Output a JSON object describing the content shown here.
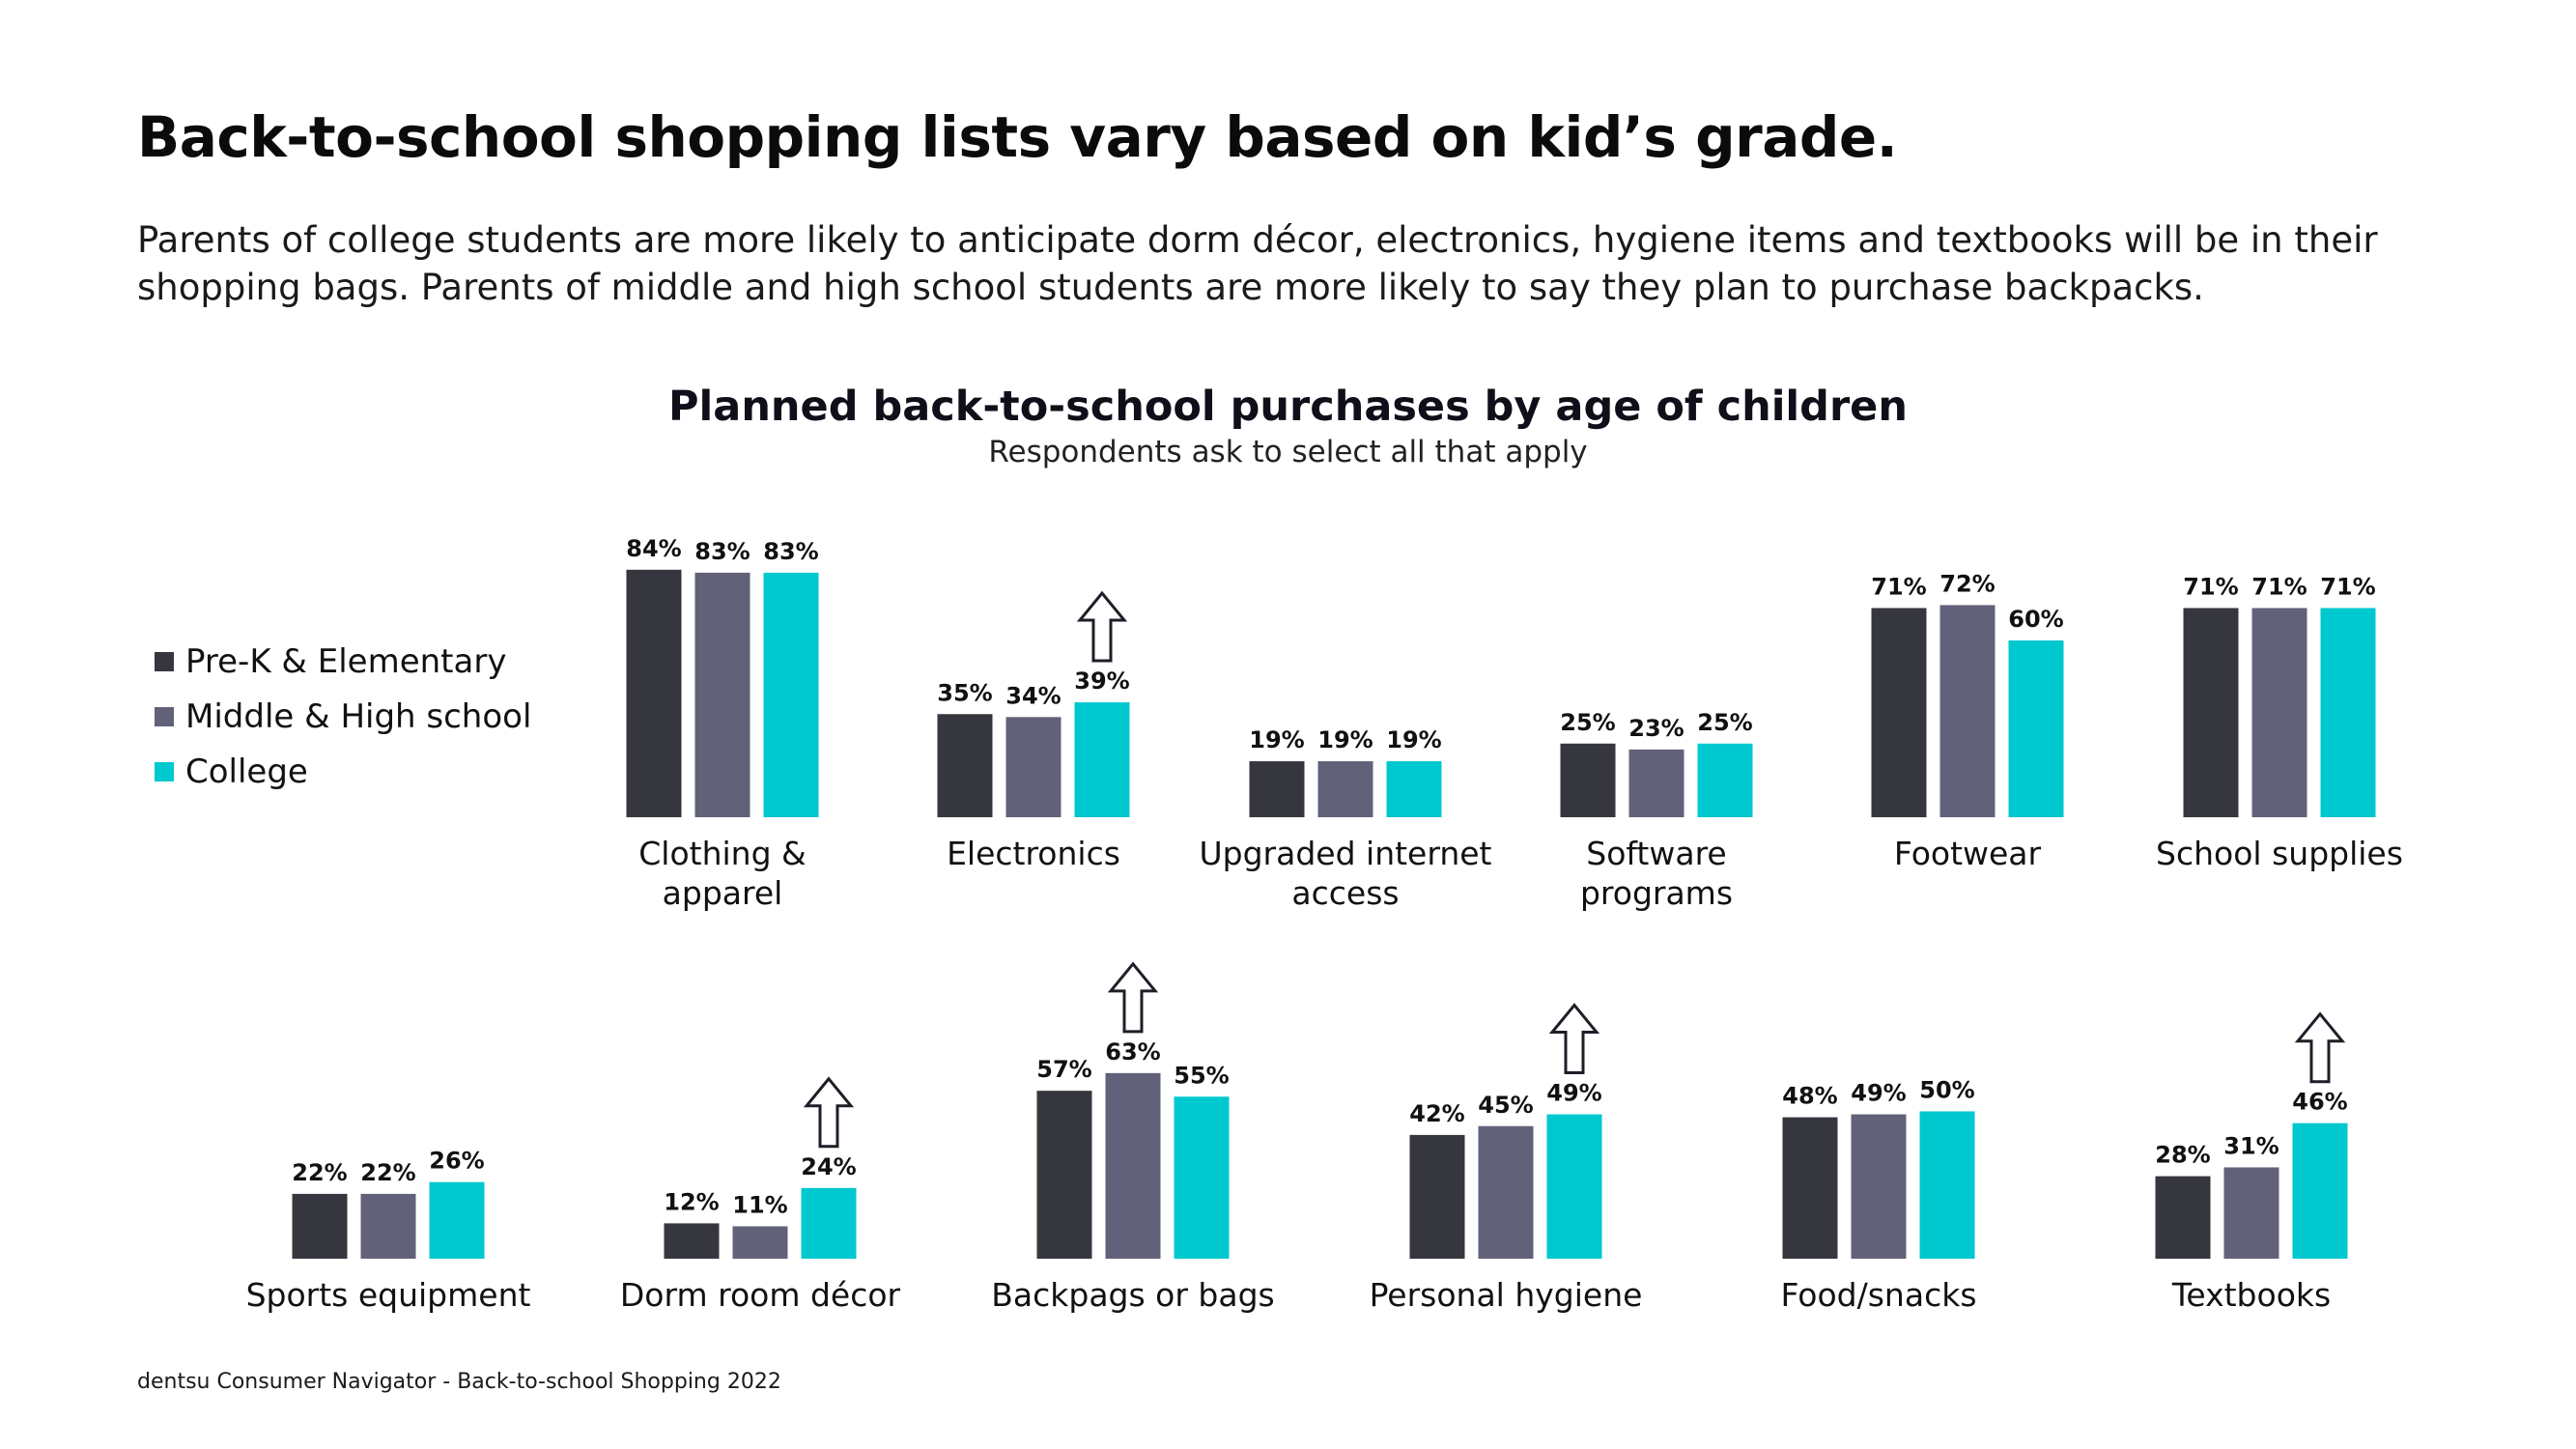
{
  "title": "Back-to-school shopping lists vary based on kid’s grade.",
  "subtitle": "Parents of college students are more likely to anticipate dorm décor, electronics, hygiene items and textbooks will be in their shopping bags. Parents of middle and high school students are more likely to say they plan to purchase backpacks.",
  "footer": "dentsu Consumer Navigator - Back-to-school Shopping 2022",
  "colors": {
    "prek": "#36363e",
    "middle": "#62617a",
    "college": "#00c8cf",
    "arrow": "#1e1e28"
  },
  "icons": {
    "highlight": "up-arrow-icon"
  },
  "chart_data": {
    "type": "bar",
    "title": "Planned back-to-school purchases by age of children",
    "subtitle": "Respondents ask to select all that apply",
    "unit": "%",
    "series_names": [
      "Pre-K & Elementary",
      "Middle & High school",
      "College"
    ],
    "categories": [
      {
        "label": [
          "Clothing &",
          "apparel"
        ],
        "values": [
          84,
          83,
          83
        ],
        "highlight": null
      },
      {
        "label": [
          "Electronics"
        ],
        "values": [
          35,
          34,
          39
        ],
        "highlight": 2
      },
      {
        "label": [
          "Upgraded internet",
          "access"
        ],
        "values": [
          19,
          19,
          19
        ],
        "highlight": null
      },
      {
        "label": [
          "Software",
          "programs"
        ],
        "values": [
          25,
          23,
          25
        ],
        "highlight": null
      },
      {
        "label": [
          "Footwear"
        ],
        "values": [
          71,
          72,
          60
        ],
        "highlight": null
      },
      {
        "label": [
          "School supplies"
        ],
        "values": [
          71,
          71,
          71
        ],
        "highlight": null
      },
      {
        "label": [
          "Sports equipment"
        ],
        "values": [
          22,
          22,
          26
        ],
        "highlight": null
      },
      {
        "label": [
          "Dorm room décor"
        ],
        "values": [
          12,
          11,
          24
        ],
        "highlight": 2
      },
      {
        "label": [
          "Backpags or bags"
        ],
        "values": [
          57,
          63,
          55
        ],
        "highlight": 1
      },
      {
        "label": [
          "Personal hygiene"
        ],
        "values": [
          42,
          45,
          49
        ],
        "highlight": 2
      },
      {
        "label": [
          "Food/snacks"
        ],
        "values": [
          48,
          49,
          50
        ],
        "highlight": null
      },
      {
        "label": [
          "Textbooks"
        ],
        "values": [
          28,
          31,
          46
        ],
        "highlight": 2
      }
    ]
  }
}
